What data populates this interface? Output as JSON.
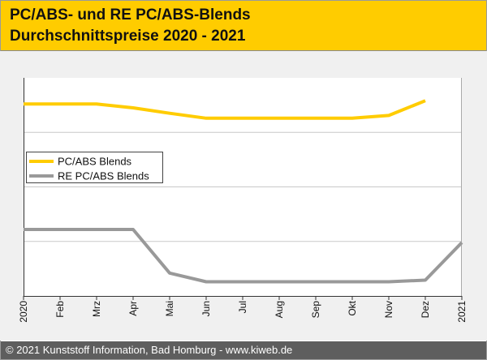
{
  "header": {
    "title_line1": "PC/ABS- und RE PC/ABS-Blends",
    "title_line2": "Durchschnittspreise 2020 - 2021"
  },
  "footer": {
    "text": "© 2021 Kunststoff Information, Bad Homburg - www.kiweb.de"
  },
  "colors": {
    "header_bg": "#ffcc00",
    "plot_bg": "#ffffff",
    "outer_bg": "#f0f0f0",
    "grid": "#c8c8c8",
    "footer_bg": "#5e5e5e"
  },
  "chart_data": {
    "type": "line",
    "categories": [
      "2020",
      "Feb",
      "Mrz",
      "Apr",
      "Mai",
      "Jun",
      "Jul",
      "Aug",
      "Sep",
      "Okt",
      "Nov",
      "Dez",
      "2021"
    ],
    "ylim": [
      0,
      4
    ],
    "y_ticks_labeled": false,
    "grid": "horizontal",
    "legend_position": "middle-left",
    "series": [
      {
        "name": "PC/ABS Blends",
        "color": "#ffcc00",
        "values": [
          3.52,
          3.52,
          3.52,
          3.45,
          3.35,
          3.26,
          3.26,
          3.26,
          3.26,
          3.26,
          3.31,
          3.58,
          null
        ]
      },
      {
        "name": "RE PC/ABS Blends",
        "color": "#999999",
        "values": [
          1.22,
          1.22,
          1.22,
          1.22,
          0.42,
          0.26,
          0.26,
          0.26,
          0.26,
          0.26,
          0.26,
          0.29,
          0.98
        ]
      }
    ]
  }
}
